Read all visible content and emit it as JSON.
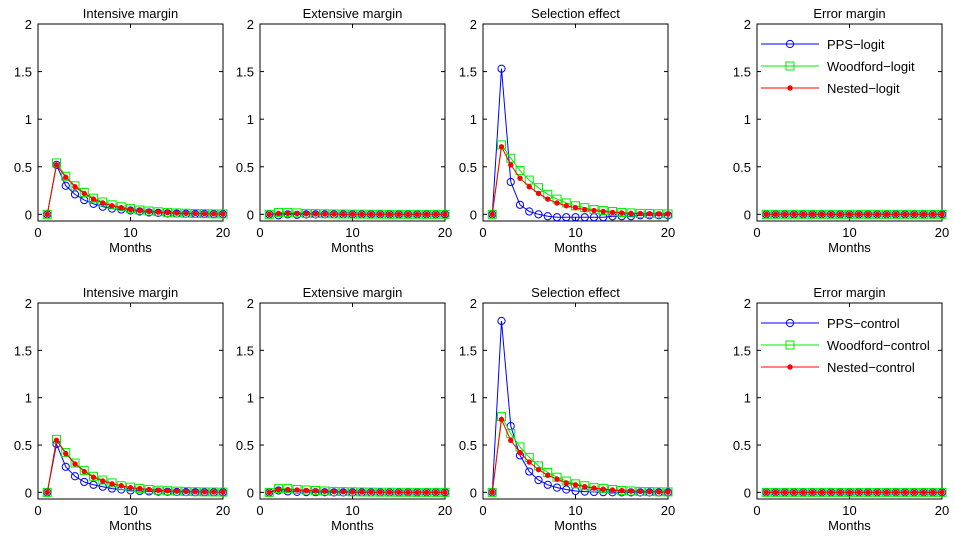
{
  "figure": {
    "background": "#ffffff",
    "series_style": [
      {
        "color": "#0000ff",
        "marker": "circle"
      },
      {
        "color": "#00ee00",
        "marker": "square"
      },
      {
        "color": "#ff0000",
        "marker": "dot"
      }
    ]
  },
  "chart_data": [
    {
      "type": "line",
      "title": "Intensive margin",
      "xlabel": "Months",
      "ylabel": "",
      "xlim": [
        0,
        20
      ],
      "ylim": [
        -0.07,
        2
      ],
      "xticks": [
        0,
        10,
        20
      ],
      "yticks": [
        0,
        0.5,
        1,
        1.5,
        2
      ],
      "grid": false,
      "legend": null,
      "x": [
        1,
        2,
        3,
        4,
        5,
        6,
        7,
        8,
        9,
        10,
        11,
        12,
        13,
        14,
        15,
        16,
        17,
        18,
        19,
        20
      ],
      "series": [
        {
          "values": [
            0,
            0.52,
            0.3,
            0.21,
            0.15,
            0.11,
            0.08,
            0.06,
            0.05,
            0.04,
            0.03,
            0.02,
            0.015,
            0.01,
            0.008,
            0.006,
            0.005,
            0.004,
            0.003,
            0.002
          ]
        },
        {
          "values": [
            0,
            0.54,
            0.4,
            0.3,
            0.23,
            0.17,
            0.13,
            0.1,
            0.08,
            0.06,
            0.045,
            0.035,
            0.027,
            0.02,
            0.015,
            0.012,
            0.009,
            0.007,
            0.005,
            0.004
          ]
        },
        {
          "values": [
            0,
            0.52,
            0.39,
            0.29,
            0.22,
            0.16,
            0.12,
            0.09,
            0.07,
            0.05,
            0.04,
            0.03,
            0.024,
            0.018,
            0.013,
            0.01,
            0.008,
            0.006,
            0.005,
            0.004
          ]
        }
      ]
    },
    {
      "type": "line",
      "title": "Extensive margin",
      "xlabel": "Months",
      "ylabel": "",
      "xlim": [
        0,
        20
      ],
      "ylim": [
        -0.07,
        2
      ],
      "xticks": [
        0,
        10,
        20
      ],
      "yticks": [
        0,
        0.5,
        1,
        1.5,
        2
      ],
      "grid": false,
      "legend": null,
      "x": [
        1,
        2,
        3,
        4,
        5,
        6,
        7,
        8,
        9,
        10,
        11,
        12,
        13,
        14,
        15,
        16,
        17,
        18,
        19,
        20
      ],
      "series": [
        {
          "values": [
            0,
            -0.01,
            0,
            -0.005,
            0,
            0,
            0,
            0,
            0,
            0,
            0,
            0,
            0,
            0,
            0,
            0,
            0,
            0,
            0,
            0
          ]
        },
        {
          "values": [
            0,
            0.02,
            0.02,
            0.015,
            0.01,
            0.008,
            0.006,
            0.004,
            0.003,
            0.002,
            0.002,
            0.001,
            0.001,
            0,
            0,
            0,
            0,
            0,
            0,
            0
          ]
        },
        {
          "values": [
            0,
            0.01,
            0.01,
            0.008,
            0.006,
            0.004,
            0.003,
            0.002,
            0.001,
            0.001,
            0,
            0,
            0,
            0,
            0,
            0,
            0,
            0,
            0,
            0
          ]
        }
      ]
    },
    {
      "type": "line",
      "title": "Selection effect",
      "xlabel": "Months",
      "ylabel": "",
      "xlim": [
        0,
        20
      ],
      "ylim": [
        -0.07,
        2
      ],
      "xticks": [
        0,
        10,
        20
      ],
      "yticks": [
        0,
        0.5,
        1,
        1.5,
        2
      ],
      "grid": false,
      "legend": null,
      "x": [
        1,
        2,
        3,
        4,
        5,
        6,
        7,
        8,
        9,
        10,
        11,
        12,
        13,
        14,
        15,
        16,
        17,
        18,
        19,
        20
      ],
      "series": [
        {
          "values": [
            0,
            1.53,
            0.34,
            0.1,
            0.03,
            0.0,
            -0.02,
            -0.03,
            -0.03,
            -0.03,
            -0.03,
            -0.03,
            -0.03,
            -0.02,
            -0.02,
            -0.02,
            -0.01,
            -0.01,
            -0.01,
            -0.01
          ]
        },
        {
          "values": [
            0,
            0.73,
            0.59,
            0.46,
            0.36,
            0.28,
            0.21,
            0.16,
            0.12,
            0.09,
            0.07,
            0.05,
            0.04,
            0.03,
            0.02,
            0.015,
            0.01,
            0.008,
            0.006,
            0.005
          ]
        },
        {
          "values": [
            0,
            0.71,
            0.52,
            0.38,
            0.29,
            0.22,
            0.16,
            0.12,
            0.09,
            0.07,
            0.05,
            0.04,
            0.03,
            0.02,
            0.015,
            0.01,
            0.008,
            0.006,
            0.004,
            0.003
          ]
        }
      ]
    },
    {
      "type": "line",
      "title": "Error margin",
      "xlabel": "Months",
      "ylabel": "",
      "xlim": [
        0,
        20
      ],
      "ylim": [
        -0.07,
        2
      ],
      "xticks": [
        0,
        10,
        20
      ],
      "yticks": [
        0,
        0.5,
        1,
        1.5,
        2
      ],
      "grid": false,
      "legend": "top-right",
      "x": [
        1,
        2,
        3,
        4,
        5,
        6,
        7,
        8,
        9,
        10,
        11,
        12,
        13,
        14,
        15,
        16,
        17,
        18,
        19,
        20
      ],
      "series": [
        {
          "name": "PPS−logit",
          "values": [
            0,
            0,
            0,
            0,
            0,
            0,
            0,
            0,
            0,
            0,
            0,
            0,
            0,
            0,
            0,
            0,
            0,
            0,
            0,
            0
          ]
        },
        {
          "name": "Woodford−logit",
          "values": [
            0,
            0,
            0,
            0,
            0,
            0,
            0,
            0,
            0,
            0,
            0,
            0,
            0,
            0,
            0,
            0,
            0,
            0,
            0,
            0
          ]
        },
        {
          "name": "Nested−logit",
          "values": [
            0,
            0,
            0,
            0,
            0,
            0,
            0,
            0,
            0,
            0,
            0,
            0,
            0,
            0,
            0,
            0,
            0,
            0,
            0,
            0
          ]
        }
      ]
    },
    {
      "type": "line",
      "title": "Intensive margin",
      "xlabel": "Months",
      "ylabel": "",
      "xlim": [
        0,
        20
      ],
      "ylim": [
        -0.07,
        2
      ],
      "xticks": [
        0,
        10,
        20
      ],
      "yticks": [
        0,
        0.5,
        1,
        1.5,
        2
      ],
      "grid": false,
      "legend": null,
      "x": [
        1,
        2,
        3,
        4,
        5,
        6,
        7,
        8,
        9,
        10,
        11,
        12,
        13,
        14,
        15,
        16,
        17,
        18,
        19,
        20
      ],
      "series": [
        {
          "values": [
            0,
            0.51,
            0.27,
            0.17,
            0.11,
            0.08,
            0.06,
            0.04,
            0.03,
            0.02,
            0.015,
            0.01,
            0.008,
            0.006,
            0.004,
            0.003,
            0.002,
            0.002,
            0.001,
            0.001
          ]
        },
        {
          "values": [
            0,
            0.56,
            0.42,
            0.31,
            0.23,
            0.17,
            0.13,
            0.1,
            0.07,
            0.055,
            0.04,
            0.03,
            0.023,
            0.017,
            0.013,
            0.01,
            0.007,
            0.005,
            0.004,
            0.003
          ]
        },
        {
          "values": [
            0,
            0.55,
            0.41,
            0.3,
            0.22,
            0.16,
            0.12,
            0.09,
            0.07,
            0.05,
            0.04,
            0.03,
            0.022,
            0.016,
            0.012,
            0.009,
            0.007,
            0.005,
            0.004,
            0.003
          ]
        }
      ]
    },
    {
      "type": "line",
      "title": "Extensive margin",
      "xlabel": "Months",
      "ylabel": "",
      "xlim": [
        0,
        20
      ],
      "ylim": [
        -0.07,
        2
      ],
      "xticks": [
        0,
        10,
        20
      ],
      "yticks": [
        0,
        0.5,
        1,
        1.5,
        2
      ],
      "grid": false,
      "legend": null,
      "x": [
        1,
        2,
        3,
        4,
        5,
        6,
        7,
        8,
        9,
        10,
        11,
        12,
        13,
        14,
        15,
        16,
        17,
        18,
        19,
        20
      ],
      "series": [
        {
          "values": [
            0,
            0.02,
            0.01,
            0.005,
            0.003,
            0.002,
            0.001,
            0,
            0,
            0,
            0,
            0,
            0,
            0,
            0,
            0,
            0,
            0,
            0,
            0
          ]
        },
        {
          "values": [
            0,
            0.04,
            0.04,
            0.03,
            0.025,
            0.02,
            0.015,
            0.01,
            0.008,
            0.006,
            0.004,
            0.003,
            0.002,
            0.002,
            0.001,
            0.001,
            0,
            0,
            0,
            0
          ]
        },
        {
          "values": [
            0,
            0.03,
            0.03,
            0.025,
            0.02,
            0.015,
            0.011,
            0.008,
            0.006,
            0.004,
            0.003,
            0.002,
            0.002,
            0.001,
            0.001,
            0,
            0,
            0,
            0,
            0
          ]
        }
      ]
    },
    {
      "type": "line",
      "title": "Selection effect",
      "xlabel": "Months",
      "ylabel": "",
      "xlim": [
        0,
        20
      ],
      "ylim": [
        -0.07,
        2
      ],
      "xticks": [
        0,
        10,
        20
      ],
      "yticks": [
        0,
        0.5,
        1,
        1.5,
        2
      ],
      "grid": false,
      "legend": null,
      "x": [
        1,
        2,
        3,
        4,
        5,
        6,
        7,
        8,
        9,
        10,
        11,
        12,
        13,
        14,
        15,
        16,
        17,
        18,
        19,
        20
      ],
      "series": [
        {
          "values": [
            0,
            1.81,
            0.7,
            0.39,
            0.22,
            0.13,
            0.08,
            0.05,
            0.03,
            0.015,
            0.008,
            0.004,
            0.002,
            0.001,
            0,
            0,
            0,
            0,
            0,
            0
          ]
        },
        {
          "values": [
            0,
            0.8,
            0.62,
            0.48,
            0.37,
            0.28,
            0.21,
            0.16,
            0.12,
            0.09,
            0.07,
            0.05,
            0.04,
            0.03,
            0.02,
            0.015,
            0.01,
            0.008,
            0.006,
            0.005
          ]
        },
        {
          "values": [
            0,
            0.77,
            0.55,
            0.42,
            0.32,
            0.24,
            0.18,
            0.14,
            0.1,
            0.08,
            0.06,
            0.045,
            0.033,
            0.025,
            0.018,
            0.013,
            0.01,
            0.007,
            0.005,
            0.004
          ]
        }
      ]
    },
    {
      "type": "line",
      "title": "Error margin",
      "xlabel": "Months",
      "ylabel": "",
      "xlim": [
        0,
        20
      ],
      "ylim": [
        -0.07,
        2
      ],
      "xticks": [
        0,
        10,
        20
      ],
      "yticks": [
        0,
        0.5,
        1,
        1.5,
        2
      ],
      "grid": false,
      "legend": "top-right",
      "x": [
        1,
        2,
        3,
        4,
        5,
        6,
        7,
        8,
        9,
        10,
        11,
        12,
        13,
        14,
        15,
        16,
        17,
        18,
        19,
        20
      ],
      "series": [
        {
          "name": "PPS−control",
          "values": [
            0,
            0,
            0,
            0,
            0,
            0,
            0,
            0,
            0,
            0,
            0,
            0,
            0,
            0,
            0,
            0,
            0,
            0,
            0,
            0
          ]
        },
        {
          "name": "Woodford−control",
          "values": [
            0,
            0,
            0,
            0,
            0,
            0,
            0,
            0,
            0,
            0,
            0,
            0,
            0,
            0,
            0,
            0,
            0,
            0,
            0,
            0
          ]
        },
        {
          "name": "Nested−control",
          "values": [
            0,
            0,
            0,
            0,
            0,
            0,
            0,
            0,
            0,
            0,
            0,
            0,
            0,
            0,
            0,
            0,
            0,
            0,
            0,
            0
          ]
        }
      ]
    }
  ]
}
